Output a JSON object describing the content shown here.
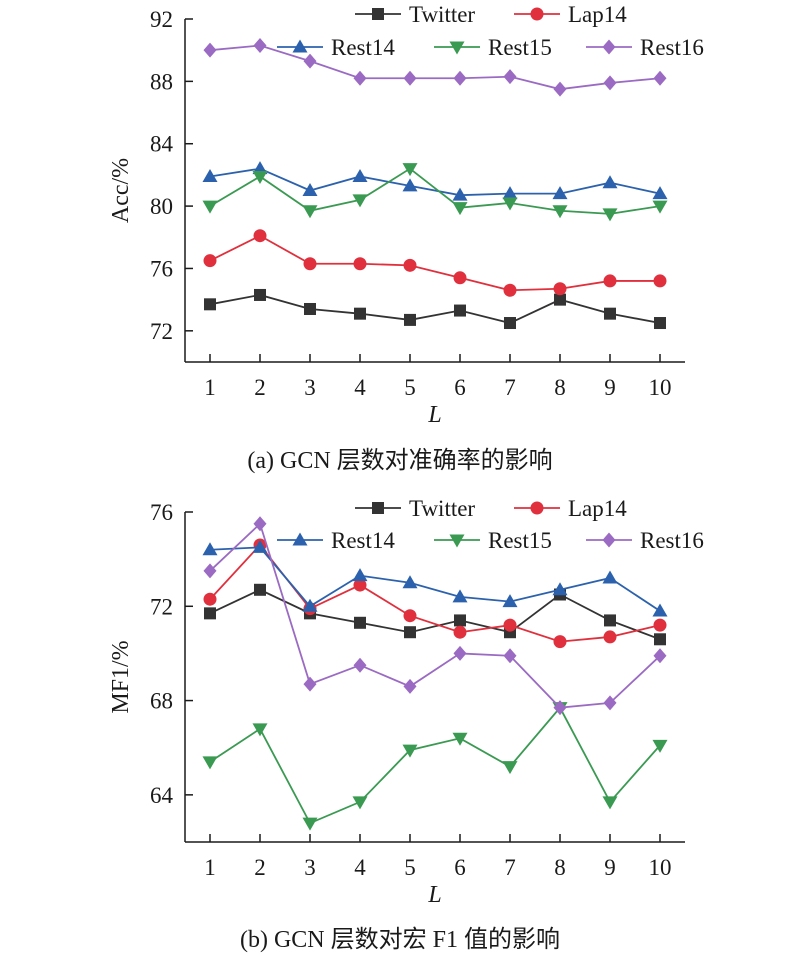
{
  "chart_data": [
    {
      "type": "line",
      "caption": "(a) GCN 层数对准确率的影响",
      "xlabel": "L",
      "ylabel": "Acc/%",
      "x": [
        1,
        2,
        3,
        4,
        5,
        6,
        7,
        8,
        9,
        10
      ],
      "xticks": [
        1,
        2,
        3,
        4,
        5,
        6,
        7,
        8,
        9,
        10
      ],
      "ylim": [
        70,
        92
      ],
      "yticks": [
        72,
        76,
        80,
        84,
        88,
        92
      ],
      "legend_position": "top-right",
      "grid": false,
      "series": [
        {
          "name": "Twitter",
          "color": "#333333",
          "marker": "square",
          "values": [
            73.7,
            74.3,
            73.4,
            73.1,
            72.7,
            73.3,
            72.5,
            74.0,
            73.1,
            72.5
          ]
        },
        {
          "name": "Lap14",
          "color": "#e0303d",
          "marker": "circle",
          "values": [
            76.5,
            78.1,
            76.3,
            76.3,
            76.2,
            75.4,
            74.6,
            74.7,
            75.2,
            75.2
          ]
        },
        {
          "name": "Rest14",
          "color": "#2c62ad",
          "marker": "triangle",
          "values": [
            81.9,
            82.4,
            81.0,
            81.9,
            81.3,
            80.7,
            80.8,
            80.8,
            81.5,
            80.8
          ]
        },
        {
          "name": "Rest15",
          "color": "#3a9a52",
          "marker": "triangle-down",
          "values": [
            80.0,
            81.9,
            79.7,
            80.4,
            82.4,
            79.9,
            80.2,
            79.7,
            79.5,
            80.0
          ]
        },
        {
          "name": "Rest16",
          "color": "#9b6bc3",
          "marker": "diamond",
          "values": [
            90.0,
            90.3,
            89.3,
            88.2,
            88.2,
            88.2,
            88.3,
            87.5,
            87.9,
            88.2
          ]
        }
      ]
    },
    {
      "type": "line",
      "caption": "(b) GCN 层数对宏 F1 值的影响",
      "xlabel": "L",
      "ylabel": "MF1/%",
      "x": [
        1,
        2,
        3,
        4,
        5,
        6,
        7,
        8,
        9,
        10
      ],
      "xticks": [
        1,
        2,
        3,
        4,
        5,
        6,
        7,
        8,
        9,
        10
      ],
      "ylim": [
        62,
        76
      ],
      "yticks": [
        64,
        68,
        72,
        76
      ],
      "legend_position": "top-right",
      "grid": false,
      "series": [
        {
          "name": "Twitter",
          "color": "#333333",
          "marker": "square",
          "values": [
            71.7,
            72.7,
            71.7,
            71.3,
            70.9,
            71.4,
            70.9,
            72.5,
            71.4,
            70.6
          ]
        },
        {
          "name": "Lap14",
          "color": "#e0303d",
          "marker": "circle",
          "values": [
            72.3,
            74.6,
            71.9,
            72.9,
            71.6,
            70.9,
            71.2,
            70.5,
            70.7,
            71.2
          ]
        },
        {
          "name": "Rest14",
          "color": "#2c62ad",
          "marker": "triangle",
          "values": [
            74.4,
            74.5,
            72.0,
            73.3,
            73.0,
            72.4,
            72.2,
            72.7,
            73.2,
            71.8
          ]
        },
        {
          "name": "Rest15",
          "color": "#3a9a52",
          "marker": "triangle-down",
          "values": [
            65.4,
            66.8,
            62.8,
            63.7,
            65.9,
            66.4,
            65.2,
            67.7,
            63.7,
            66.1
          ]
        },
        {
          "name": "Rest16",
          "color": "#9b6bc3",
          "marker": "diamond",
          "values": [
            73.5,
            75.5,
            68.7,
            69.5,
            68.6,
            70.0,
            69.9,
            67.7,
            67.9,
            69.9
          ]
        }
      ]
    }
  ]
}
